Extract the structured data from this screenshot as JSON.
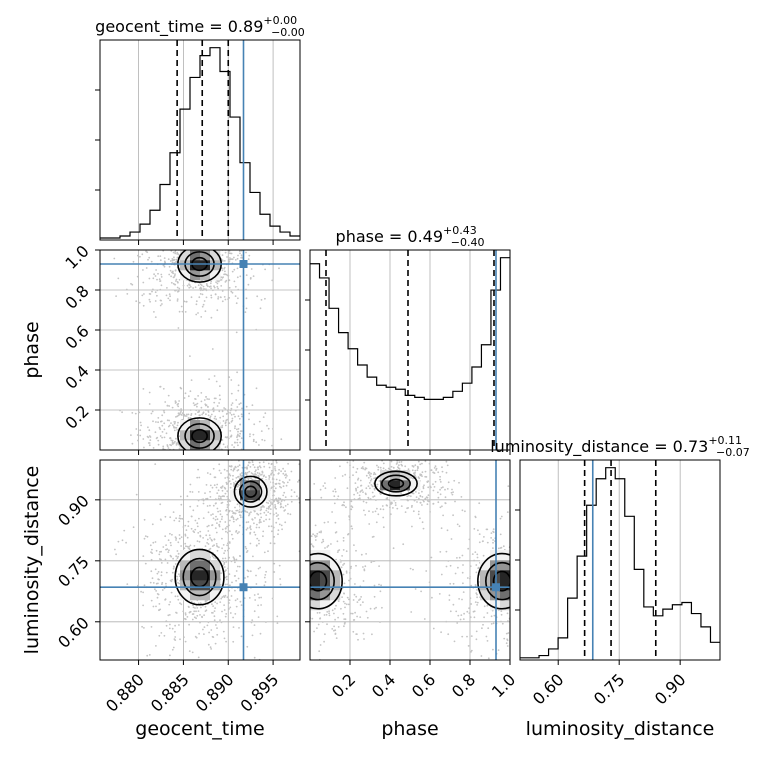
{
  "chart_data": {
    "type": "corner",
    "parameters": [
      "geocent_time",
      "phase",
      "luminosity_distance"
    ],
    "titles": [
      {
        "param": "geocent_time",
        "label": "geocent_time = 0.89",
        "plus": "+0.00",
        "minus": "−0.00"
      },
      {
        "param": "phase",
        "label": "phase = 0.49",
        "plus": "+0.43",
        "minus": "−0.40"
      },
      {
        "param": "luminosity_distance",
        "label": "luminosity_distance = 0.73",
        "plus": "+0.11",
        "minus": "−0.07"
      }
    ],
    "axis_labels": {
      "geocent_time": "geocent_time",
      "phase": "phase",
      "luminosity_distance": "luminosity_distance"
    },
    "ranges": {
      "geocent_time": [
        0.8757,
        0.898
      ],
      "phase": [
        0.0,
        1.0
      ],
      "luminosity_distance": [
        0.506,
        0.998
      ]
    },
    "ticks": {
      "geocent_time": [
        "0.880",
        "0.885",
        "0.890",
        "0.895"
      ],
      "phase": [
        "0.2",
        "0.4",
        "0.6",
        "0.8",
        "1.0"
      ],
      "luminosity_distance": [
        "0.60",
        "0.75",
        "0.90"
      ]
    },
    "truths": {
      "geocent_time": 0.8917,
      "phase": 0.93,
      "luminosity_distance": 0.685
    },
    "quantiles": {
      "geocent_time": [
        0.8843,
        0.8871,
        0.89
      ],
      "phase": [
        0.08,
        0.49,
        0.92
      ],
      "luminosity_distance": [
        0.665,
        0.73,
        0.84
      ]
    },
    "histograms": {
      "geocent_time": [
        0.01,
        0.01,
        0.02,
        0.04,
        0.08,
        0.15,
        0.28,
        0.44,
        0.66,
        0.82,
        0.93,
        0.97,
        0.85,
        0.62,
        0.39,
        0.24,
        0.13,
        0.07,
        0.04,
        0.02
      ],
      "phase": [
        0.92,
        0.85,
        0.7,
        0.58,
        0.5,
        0.42,
        0.36,
        0.32,
        0.31,
        0.3,
        0.27,
        0.26,
        0.25,
        0.25,
        0.26,
        0.29,
        0.33,
        0.41,
        0.52,
        0.79,
        0.95
      ],
      "luminosity_distance": [
        0.01,
        0.01,
        0.02,
        0.05,
        0.1,
        0.28,
        0.47,
        0.7,
        0.82,
        0.87,
        0.82,
        0.65,
        0.41,
        0.24,
        0.2,
        0.23,
        0.25,
        0.26,
        0.21,
        0.15,
        0.08
      ]
    },
    "contours": [
      {
        "x": "geocent_time",
        "y": "phase",
        "modes": [
          {
            "x": 0.8868,
            "y": 0.93,
            "sx": 0.0016,
            "sy": 0.06
          },
          {
            "x": 0.8868,
            "y": 0.07,
            "sx": 0.0016,
            "sy": 0.06
          }
        ]
      },
      {
        "x": "geocent_time",
        "y": "luminosity_distance",
        "modes": [
          {
            "x": 0.8868,
            "y": 0.71,
            "sx": 0.0018,
            "sy": 0.045
          },
          {
            "x": 0.8925,
            "y": 0.92,
            "sx": 0.0012,
            "sy": 0.025
          }
        ]
      },
      {
        "x": "phase",
        "y": "luminosity_distance",
        "modes": [
          {
            "x": 0.04,
            "y": 0.7,
            "sx": 0.08,
            "sy": 0.045
          },
          {
            "x": 0.96,
            "y": 0.7,
            "sx": 0.08,
            "sy": 0.045
          },
          {
            "x": 0.43,
            "y": 0.94,
            "sx": 0.07,
            "sy": 0.02
          }
        ]
      }
    ],
    "grid": true,
    "colors": {
      "truth": "#4682b4",
      "hist": "#000000",
      "grid": "#b0b0b0",
      "points": "#c4c4c4"
    }
  }
}
